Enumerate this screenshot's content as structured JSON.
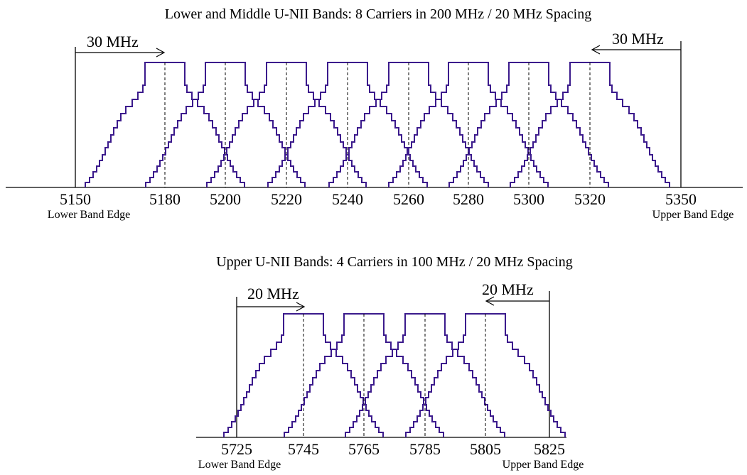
{
  "style": {
    "spectrum_color": "#3b1a8c"
  },
  "panels": [
    {
      "title": "Lower and Middle U-NII Bands: 8 Carriers in 200 MHz / 20 MHz Spacing",
      "ticks": [
        "5150",
        "5180",
        "5200",
        "5220",
        "5240",
        "5260",
        "5280",
        "5300",
        "5320",
        "5350"
      ],
      "lower_edge_label": "Lower Band Edge",
      "upper_edge_label": "Upper Band Edge",
      "left_spacing_label": "30 MHz",
      "right_spacing_label": "30 MHz",
      "carrier_center_frequencies_mhz": [
        5180,
        5200,
        5220,
        5240,
        5260,
        5280,
        5300,
        5320
      ],
      "band_edges_mhz": [
        5150,
        5350
      ]
    },
    {
      "title": "Upper U-NII Bands: 4 Carriers in 100 MHz / 20 MHz Spacing",
      "ticks": [
        "5725",
        "5745",
        "5765",
        "5785",
        "5805",
        "5825"
      ],
      "lower_edge_label": "Lower Band Edge",
      "upper_edge_label": "Upper Band Edge",
      "left_spacing_label": "20 MHz",
      "right_spacing_label": "20 MHz",
      "carrier_center_frequencies_mhz": [
        5745,
        5765,
        5785,
        5805
      ],
      "band_edges_mhz": [
        5725,
        5825
      ]
    }
  ]
}
